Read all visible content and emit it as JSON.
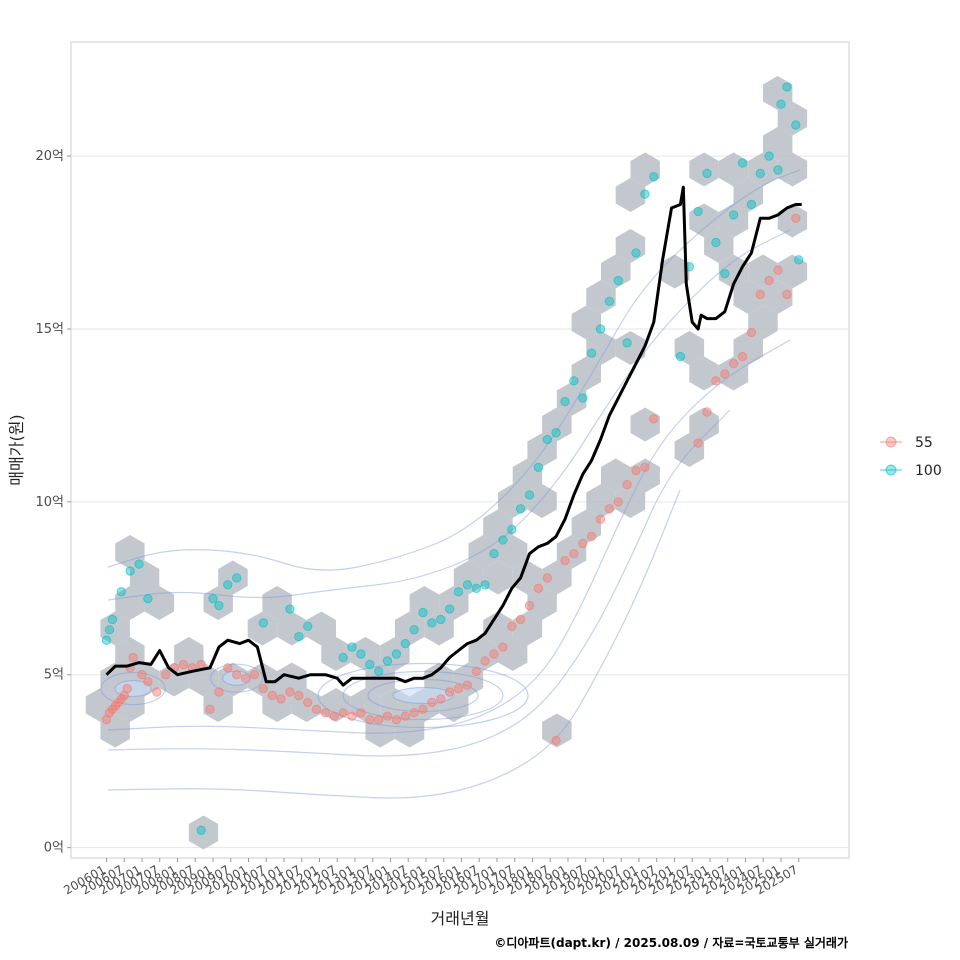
{
  "chart_data": {
    "type": "scatter",
    "xlabel": "거래년월",
    "ylabel": "매매가(원)",
    "caption": "©디아파트(dapt.kr) / 2025.08.09 / 자료=국토교통부 실거래가",
    "y_unit": "억",
    "ylim": [
      -0.3,
      23.3
    ],
    "xlim": [
      "2005-01",
      "2026-12"
    ],
    "grid": true,
    "legend_position": "right",
    "y_ticks": [
      {
        "value": 0,
        "label": "0억"
      },
      {
        "value": 5,
        "label": "5억"
      },
      {
        "value": 10,
        "label": "10억"
      },
      {
        "value": 15,
        "label": "15억"
      },
      {
        "value": 20,
        "label": "20억"
      }
    ],
    "x_ticks": [
      "200601",
      "200607",
      "200701",
      "200707",
      "200801",
      "200807",
      "200901",
      "200907",
      "201001",
      "201007",
      "201101",
      "201107",
      "201201",
      "201207",
      "201301",
      "201307",
      "201401",
      "201407",
      "201501",
      "201507",
      "201601",
      "201607",
      "201701",
      "201707",
      "201801",
      "201807",
      "201901",
      "201907",
      "202001",
      "202007",
      "202101",
      "202107",
      "202201",
      "202207",
      "202301",
      "202307",
      "202401",
      "202407",
      "202501",
      "202507"
    ],
    "legend": [
      {
        "name": "55",
        "color": "#F8766D"
      },
      {
        "name": "100",
        "color": "#00BFC4"
      }
    ],
    "hex_color": "#b8bec6",
    "contour_color": "#7b96e0",
    "density_fill_color": "#c7dcf6",
    "trend_color": "#000000",
    "series": [
      {
        "name": "55",
        "color": "#F8766D",
        "points": [
          [
            "2006-01",
            3.7
          ],
          [
            "2006-02",
            3.9
          ],
          [
            "2006-03",
            4.0
          ],
          [
            "2006-04",
            4.1
          ],
          [
            "2006-05",
            4.2
          ],
          [
            "2006-06",
            4.3
          ],
          [
            "2006-07",
            4.4
          ],
          [
            "2006-08",
            4.6
          ],
          [
            "2006-09",
            5.2
          ],
          [
            "2006-10",
            5.5
          ],
          [
            "2007-01",
            5.0
          ],
          [
            "2007-03",
            4.8
          ],
          [
            "2007-06",
            4.5
          ],
          [
            "2007-09",
            5.0
          ],
          [
            "2007-12",
            5.2
          ],
          [
            "2008-03",
            5.3
          ],
          [
            "2008-06",
            5.2
          ],
          [
            "2008-09",
            5.3
          ],
          [
            "2008-12",
            4.0
          ],
          [
            "2009-03",
            4.5
          ],
          [
            "2009-06",
            5.2
          ],
          [
            "2009-09",
            5.0
          ],
          [
            "2009-12",
            4.9
          ],
          [
            "2010-03",
            5.0
          ],
          [
            "2010-06",
            4.6
          ],
          [
            "2010-09",
            4.4
          ],
          [
            "2010-12",
            4.3
          ],
          [
            "2011-03",
            4.5
          ],
          [
            "2011-06",
            4.4
          ],
          [
            "2011-09",
            4.2
          ],
          [
            "2011-12",
            4.0
          ],
          [
            "2012-03",
            3.9
          ],
          [
            "2012-06",
            3.8
          ],
          [
            "2012-09",
            3.9
          ],
          [
            "2012-12",
            3.8
          ],
          [
            "2013-03",
            3.9
          ],
          [
            "2013-06",
            3.7
          ],
          [
            "2013-09",
            3.7
          ],
          [
            "2013-12",
            3.8
          ],
          [
            "2014-03",
            3.7
          ],
          [
            "2014-06",
            3.8
          ],
          [
            "2014-09",
            3.9
          ],
          [
            "2014-12",
            4.0
          ],
          [
            "2015-03",
            4.2
          ],
          [
            "2015-06",
            4.3
          ],
          [
            "2015-09",
            4.5
          ],
          [
            "2015-12",
            4.6
          ],
          [
            "2016-03",
            4.7
          ],
          [
            "2016-06",
            5.1
          ],
          [
            "2016-09",
            5.4
          ],
          [
            "2016-12",
            5.6
          ],
          [
            "2017-03",
            5.8
          ],
          [
            "2017-06",
            6.4
          ],
          [
            "2017-09",
            6.6
          ],
          [
            "2017-12",
            7.0
          ],
          [
            "2018-03",
            7.5
          ],
          [
            "2018-06",
            7.8
          ],
          [
            "2018-09",
            3.1
          ],
          [
            "2018-12",
            8.3
          ],
          [
            "2019-03",
            8.5
          ],
          [
            "2019-06",
            8.8
          ],
          [
            "2019-09",
            9.0
          ],
          [
            "2019-12",
            9.5
          ],
          [
            "2020-03",
            9.8
          ],
          [
            "2020-06",
            10.0
          ],
          [
            "2020-09",
            10.5
          ],
          [
            "2020-12",
            10.9
          ],
          [
            "2021-03",
            11.0
          ],
          [
            "2021-06",
            12.4
          ],
          [
            "2022-09",
            11.7
          ],
          [
            "2022-12",
            12.6
          ],
          [
            "2023-03",
            13.5
          ],
          [
            "2023-06",
            13.7
          ],
          [
            "2023-09",
            14.0
          ],
          [
            "2023-12",
            14.2
          ],
          [
            "2024-03",
            14.9
          ],
          [
            "2024-06",
            16.0
          ],
          [
            "2024-09",
            16.4
          ],
          [
            "2024-12",
            16.7
          ],
          [
            "2025-03",
            16.0
          ],
          [
            "2025-06",
            18.2
          ]
        ]
      },
      {
        "name": "100",
        "color": "#00BFC4",
        "points": [
          [
            "2006-01",
            6.0
          ],
          [
            "2006-02",
            6.3
          ],
          [
            "2006-03",
            6.6
          ],
          [
            "2006-06",
            7.4
          ],
          [
            "2006-09",
            8.0
          ],
          [
            "2006-12",
            8.2
          ],
          [
            "2007-03",
            7.2
          ],
          [
            "2008-09",
            0.5
          ],
          [
            "2009-01",
            7.2
          ],
          [
            "2009-03",
            7.0
          ],
          [
            "2009-06",
            7.6
          ],
          [
            "2009-09",
            7.8
          ],
          [
            "2010-06",
            6.5
          ],
          [
            "2011-03",
            6.9
          ],
          [
            "2011-06",
            6.1
          ],
          [
            "2011-09",
            6.4
          ],
          [
            "2012-09",
            5.5
          ],
          [
            "2012-12",
            5.8
          ],
          [
            "2013-03",
            5.6
          ],
          [
            "2013-06",
            5.3
          ],
          [
            "2013-09",
            5.1
          ],
          [
            "2013-12",
            5.4
          ],
          [
            "2014-03",
            5.6
          ],
          [
            "2014-06",
            5.9
          ],
          [
            "2014-09",
            6.3
          ],
          [
            "2014-12",
            6.8
          ],
          [
            "2015-03",
            6.5
          ],
          [
            "2015-06",
            6.6
          ],
          [
            "2015-09",
            6.9
          ],
          [
            "2015-12",
            7.4
          ],
          [
            "2016-03",
            7.6
          ],
          [
            "2016-06",
            7.5
          ],
          [
            "2016-09",
            7.6
          ],
          [
            "2016-12",
            8.5
          ],
          [
            "2017-03",
            8.9
          ],
          [
            "2017-06",
            9.2
          ],
          [
            "2017-09",
            9.8
          ],
          [
            "2017-12",
            10.2
          ],
          [
            "2018-03",
            11.0
          ],
          [
            "2018-06",
            11.8
          ],
          [
            "2018-09",
            12.0
          ],
          [
            "2018-12",
            12.9
          ],
          [
            "2019-03",
            13.5
          ],
          [
            "2019-06",
            13.0
          ],
          [
            "2019-09",
            14.3
          ],
          [
            "2019-12",
            15.0
          ],
          [
            "2020-03",
            15.8
          ],
          [
            "2020-06",
            16.4
          ],
          [
            "2020-09",
            14.6
          ],
          [
            "2020-12",
            17.2
          ],
          [
            "2021-03",
            18.9
          ],
          [
            "2021-06",
            19.4
          ],
          [
            "2022-03",
            14.2
          ],
          [
            "2022-06",
            16.8
          ],
          [
            "2022-09",
            18.4
          ],
          [
            "2022-12",
            19.5
          ],
          [
            "2023-03",
            17.5
          ],
          [
            "2023-06",
            16.6
          ],
          [
            "2023-09",
            18.3
          ],
          [
            "2023-12",
            19.8
          ],
          [
            "2024-03",
            18.6
          ],
          [
            "2024-06",
            19.5
          ],
          [
            "2024-09",
            20.0
          ],
          [
            "2024-12",
            19.6
          ],
          [
            "2025-01",
            21.5
          ],
          [
            "2025-03",
            22.0
          ],
          [
            "2025-06",
            20.9
          ],
          [
            "2025-07",
            17.0
          ]
        ]
      },
      {
        "name": "trend",
        "color": "#000000",
        "points": [
          [
            "2006-01",
            5.0
          ],
          [
            "2006-04",
            5.25
          ],
          [
            "2006-08",
            5.25
          ],
          [
            "2006-12",
            5.35
          ],
          [
            "2007-04",
            5.3
          ],
          [
            "2007-07",
            5.7
          ],
          [
            "2007-10",
            5.2
          ],
          [
            "2008-01",
            5.0
          ],
          [
            "2008-06",
            5.1
          ],
          [
            "2008-12",
            5.2
          ],
          [
            "2009-03",
            5.8
          ],
          [
            "2009-06",
            6.0
          ],
          [
            "2009-10",
            5.9
          ],
          [
            "2010-01",
            6.0
          ],
          [
            "2010-04",
            5.8
          ],
          [
            "2010-07",
            4.8
          ],
          [
            "2010-10",
            4.8
          ],
          [
            "2011-01",
            5.0
          ],
          [
            "2011-06",
            4.9
          ],
          [
            "2011-10",
            5.0
          ],
          [
            "2012-03",
            5.0
          ],
          [
            "2012-07",
            4.9
          ],
          [
            "2012-09",
            4.7
          ],
          [
            "2012-12",
            4.9
          ],
          [
            "2013-03",
            4.9
          ],
          [
            "2013-08",
            4.9
          ],
          [
            "2013-12",
            4.9
          ],
          [
            "2014-03",
            4.9
          ],
          [
            "2014-06",
            4.8
          ],
          [
            "2014-09",
            4.9
          ],
          [
            "2014-12",
            4.9
          ],
          [
            "2015-03",
            5.0
          ],
          [
            "2015-06",
            5.2
          ],
          [
            "2015-09",
            5.5
          ],
          [
            "2015-12",
            5.7
          ],
          [
            "2016-03",
            5.9
          ],
          [
            "2016-06",
            6.0
          ],
          [
            "2016-09",
            6.2
          ],
          [
            "2016-12",
            6.6
          ],
          [
            "2017-03",
            7.0
          ],
          [
            "2017-06",
            7.5
          ],
          [
            "2017-09",
            7.8
          ],
          [
            "2017-12",
            8.5
          ],
          [
            "2018-03",
            8.7
          ],
          [
            "2018-06",
            8.8
          ],
          [
            "2018-09",
            9.0
          ],
          [
            "2018-12",
            9.5
          ],
          [
            "2019-03",
            10.2
          ],
          [
            "2019-06",
            10.8
          ],
          [
            "2019-09",
            11.2
          ],
          [
            "2019-12",
            11.8
          ],
          [
            "2020-03",
            12.5
          ],
          [
            "2020-06",
            13.0
          ],
          [
            "2020-09",
            13.5
          ],
          [
            "2020-12",
            14.0
          ],
          [
            "2021-03",
            14.5
          ],
          [
            "2021-06",
            15.2
          ],
          [
            "2021-09",
            17.0
          ],
          [
            "2021-12",
            18.5
          ],
          [
            "2022-03",
            18.6
          ],
          [
            "2022-04",
            19.1
          ],
          [
            "2022-05",
            16.3
          ],
          [
            "2022-07",
            15.2
          ],
          [
            "2022-09",
            15.0
          ],
          [
            "2022-10",
            15.4
          ],
          [
            "2022-12",
            15.3
          ],
          [
            "2023-03",
            15.3
          ],
          [
            "2023-06",
            15.5
          ],
          [
            "2023-09",
            16.3
          ],
          [
            "2023-12",
            16.8
          ],
          [
            "2024-03",
            17.2
          ],
          [
            "2024-06",
            18.2
          ],
          [
            "2024-09",
            18.2
          ],
          [
            "2024-12",
            18.3
          ],
          [
            "2025-03",
            18.5
          ],
          [
            "2025-06",
            18.6
          ],
          [
            "2025-08",
            18.6
          ]
        ]
      }
    ]
  }
}
